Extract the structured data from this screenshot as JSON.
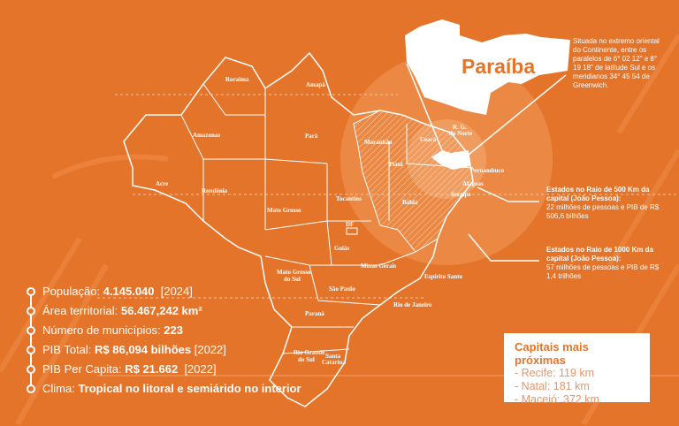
{
  "title": "Paraíba",
  "location_note": "Situada no extremo oriental do Continente, entre os paralelos de 6° 02 12\" e 8° 19 18\" de latitude Sul e os meridianos 34° 45 54 de Greenwich.",
  "radius_500": {
    "heading": "Estados no Raio de 500 Km da capital (João Pessoa):",
    "text": "22 milhões de pessoas e PIB de R$ 506,6 bilhões"
  },
  "radius_1000": {
    "heading": "Estados no Raio de 1000 Km da capital (João Pessoa):",
    "text": "57 milhões de pessoas e PIB de R$ 1,4 trilhões"
  },
  "stats": [
    {
      "label": "População: ",
      "value": "4.145.040",
      "extra": "  [2024]"
    },
    {
      "label": "Área territorial: ",
      "value": "56.467,242 km²",
      "extra": ""
    },
    {
      "label": "Número de municípios: ",
      "value": "223",
      "extra": ""
    },
    {
      "label": "PIB Total: ",
      "value": "R$ 86,094 bilhões",
      "extra": " [2022]"
    },
    {
      "label": "PIB Per Capita: ",
      "value": "R$ 21.662",
      "extra": "  [2022]"
    },
    {
      "label": "Clima: ",
      "value": "Tropical no litoral e semiárido no interior",
      "extra": ""
    }
  ],
  "capitals": {
    "title": "Capitais mais próximas",
    "items": [
      "- Recife: 119 km",
      "- Natal: 181 km",
      "- Maceió: 372 km"
    ]
  },
  "states": [
    "Roraima",
    "Amapá",
    "Amazonas",
    "Pará",
    "Maranhão",
    "Ceará",
    "R. G.",
    "do Norte",
    "Piauí",
    "Pernambuco",
    "Alagoas",
    "Sergipe",
    "Bahia",
    "Tocantins",
    "Acre",
    "Rondônia",
    "Mato Grosso",
    "DF",
    "Goiás",
    "Minas Gerais",
    "Espírito Santo",
    "Mato Grosso",
    "do Sul",
    "São Paulo",
    "Rio de Janeiro",
    "Paraná",
    "Santa",
    "Catarina",
    "Rio Grande",
    "do Sul"
  ],
  "colors": {
    "background": "#e5742b",
    "highlight": "#ffffff"
  }
}
